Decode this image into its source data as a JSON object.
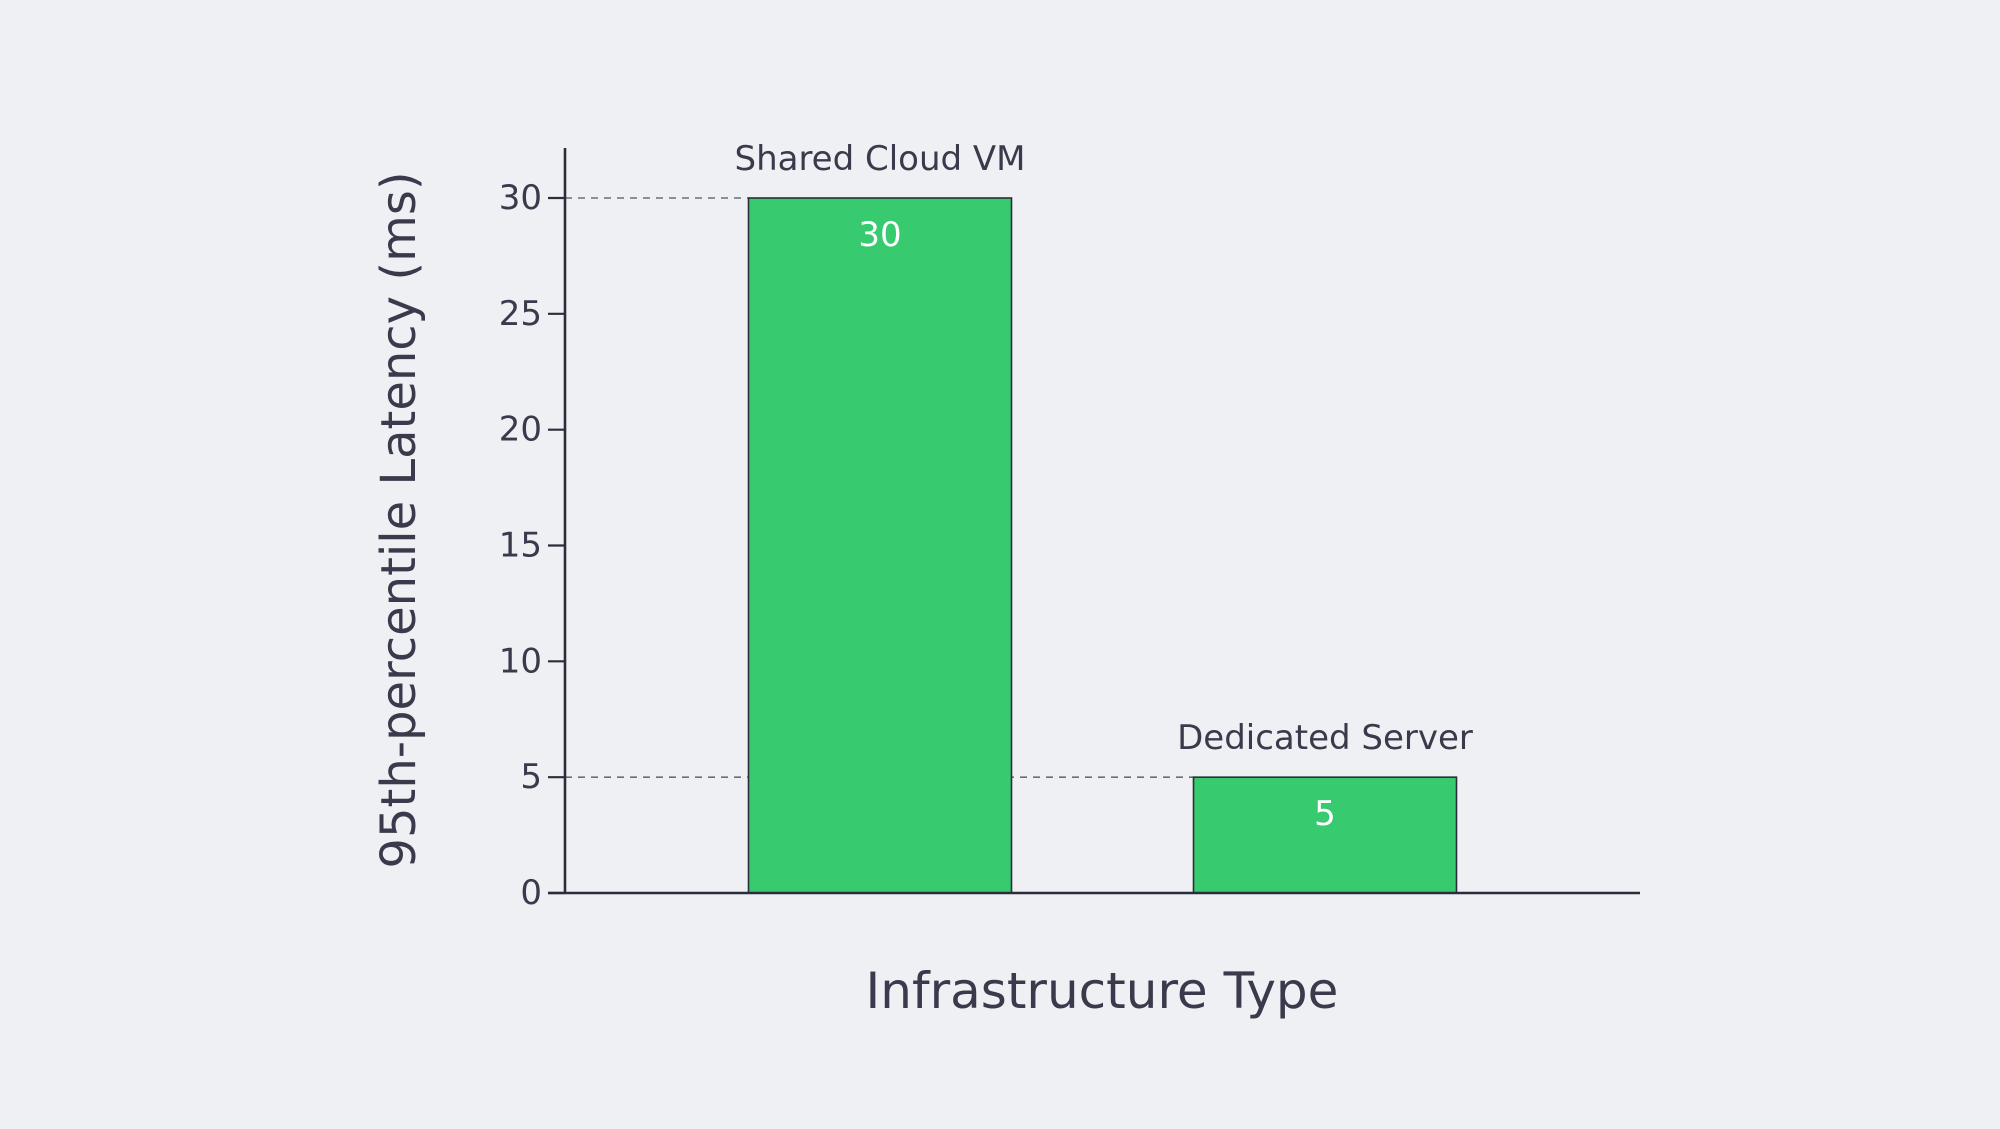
{
  "chart_data": {
    "type": "bar",
    "title": "",
    "xlabel": "Infrastructure Type",
    "ylabel": "95th-percentile Latency (ms)",
    "categories": [
      "Shared Cloud VM",
      "Dedicated Server"
    ],
    "values": [
      30,
      5
    ],
    "value_labels": [
      "30",
      "5"
    ],
    "ylim": [
      0,
      32
    ],
    "yticks": [
      0,
      5,
      10,
      15,
      20,
      25,
      30
    ],
    "ytick_labels": [
      "0",
      "5",
      "10",
      "15",
      "20",
      "25",
      "30"
    ],
    "grid": false,
    "reference_lines": "dashed lines from y-axis to each bar top",
    "legend": "none",
    "colors": {
      "background": "#eff0f4",
      "bar_fill": "#37ca6f",
      "bar_stroke": "#2b2d3a",
      "axis": "#2b2d3a",
      "text": "#393b4c",
      "value_label": "#ffffff",
      "reference_line": "#6b6d78"
    }
  }
}
